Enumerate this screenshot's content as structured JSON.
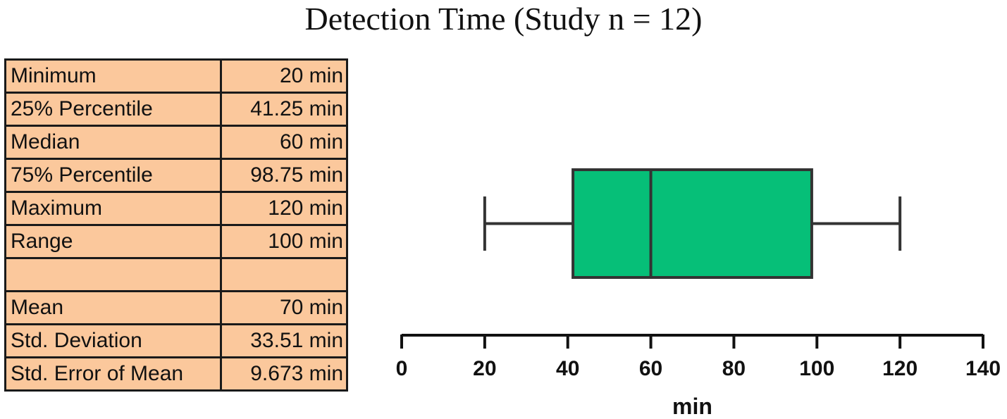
{
  "title": "Detection Time (Study n = 12)",
  "stats_table": [
    {
      "label": "Minimum",
      "value": "20 min"
    },
    {
      "label": "25% Percentile",
      "value": "41.25 min"
    },
    {
      "label": "Median",
      "value": "60 min"
    },
    {
      "label": "75% Percentile",
      "value": "98.75 min"
    },
    {
      "label": "Maximum",
      "value": "120 min"
    },
    {
      "label": "Range",
      "value": "100 min"
    },
    {
      "label": "",
      "value": ""
    },
    {
      "label": "Mean",
      "value": "70 min"
    },
    {
      "label": "Std. Deviation",
      "value": "33.51 min"
    },
    {
      "label": "Std. Error of Mean",
      "value": "9.673 min"
    }
  ],
  "chart_data": {
    "type": "boxplot",
    "orientation": "horizontal",
    "min": 20,
    "q1": 41.25,
    "median": 60,
    "q3": 98.75,
    "max": 120,
    "xlabel": "min",
    "xlim": [
      0,
      140
    ],
    "xticks": [
      0,
      20,
      40,
      60,
      80,
      100,
      120,
      140
    ],
    "grid": false,
    "box_color": "#06bf78",
    "line_color": "#333333"
  },
  "colors": {
    "table_fill": "#fbc89c",
    "table_border": "#1a1a1a"
  }
}
